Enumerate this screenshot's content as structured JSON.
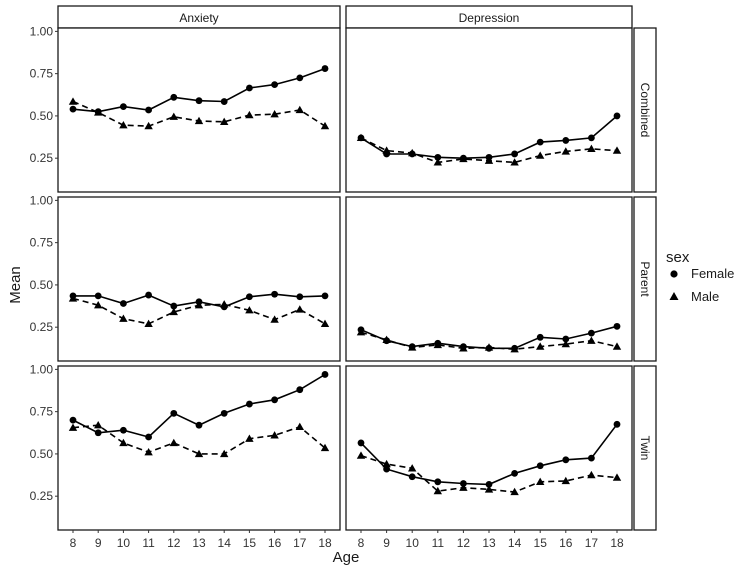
{
  "chart_data": {
    "type": "line",
    "xlabel": "Age",
    "ylabel": "Mean",
    "x": [
      8,
      9,
      10,
      11,
      12,
      13,
      14,
      15,
      16,
      17,
      18
    ],
    "ylim": [
      0.05,
      1.02
    ],
    "yticks": [
      "0.25",
      "0.50",
      "0.75",
      "1.00"
    ],
    "ytick_values": [
      0.25,
      0.5,
      0.75,
      1.0
    ],
    "columns": [
      "Anxiety",
      "Depression"
    ],
    "rows": [
      "Combined",
      "Parent",
      "Twin"
    ],
    "legend": {
      "title": "sex",
      "entries": [
        "Female",
        "Male"
      ],
      "position": "right"
    },
    "panels": [
      {
        "row": "Combined",
        "col": "Anxiety",
        "series": [
          {
            "name": "Female",
            "values": [
              0.54,
              0.525,
              0.555,
              0.535,
              0.61,
              0.59,
              0.585,
              0.665,
              0.685,
              0.725,
              0.78
            ]
          },
          {
            "name": "Male",
            "values": [
              0.585,
              0.52,
              0.445,
              0.44,
              0.495,
              0.47,
              0.465,
              0.505,
              0.51,
              0.535,
              0.44
            ]
          }
        ]
      },
      {
        "row": "Combined",
        "col": "Depression",
        "series": [
          {
            "name": "Female",
            "values": [
              0.37,
              0.275,
              0.275,
              0.255,
              0.25,
              0.255,
              0.275,
              0.345,
              0.355,
              0.37,
              0.5
            ]
          },
          {
            "name": "Male",
            "values": [
              0.37,
              0.295,
              0.28,
              0.225,
              0.245,
              0.235,
              0.225,
              0.265,
              0.29,
              0.305,
              0.295
            ]
          }
        ]
      },
      {
        "row": "Parent",
        "col": "Anxiety",
        "series": [
          {
            "name": "Female",
            "values": [
              0.435,
              0.435,
              0.39,
              0.44,
              0.375,
              0.4,
              0.37,
              0.43,
              0.445,
              0.43,
              0.435
            ]
          },
          {
            "name": "Male",
            "values": [
              0.42,
              0.38,
              0.3,
              0.27,
              0.34,
              0.38,
              0.385,
              0.35,
              0.295,
              0.355,
              0.27
            ]
          }
        ]
      },
      {
        "row": "Parent",
        "col": "Depression",
        "series": [
          {
            "name": "Female",
            "values": [
              0.235,
              0.17,
              0.135,
              0.155,
              0.135,
              0.125,
              0.125,
              0.19,
              0.18,
              0.215,
              0.255
            ]
          },
          {
            "name": "Male",
            "values": [
              0.22,
              0.175,
              0.13,
              0.145,
              0.125,
              0.13,
              0.12,
              0.135,
              0.15,
              0.17,
              0.135
            ]
          }
        ]
      },
      {
        "row": "Twin",
        "col": "Anxiety",
        "series": [
          {
            "name": "Female",
            "values": [
              0.7,
              0.625,
              0.64,
              0.6,
              0.74,
              0.67,
              0.74,
              0.795,
              0.82,
              0.88,
              0.97
            ]
          },
          {
            "name": "Male",
            "values": [
              0.655,
              0.67,
              0.565,
              0.51,
              0.565,
              0.5,
              0.5,
              0.59,
              0.61,
              0.66,
              0.535
            ]
          }
        ]
      },
      {
        "row": "Twin",
        "col": "Depression",
        "series": [
          {
            "name": "Female",
            "values": [
              0.565,
              0.41,
              0.365,
              0.335,
              0.325,
              0.32,
              0.385,
              0.43,
              0.465,
              0.475,
              0.675
            ]
          },
          {
            "name": "Male",
            "values": [
              0.49,
              0.44,
              0.415,
              0.28,
              0.3,
              0.29,
              0.275,
              0.335,
              0.34,
              0.375,
              0.36
            ]
          }
        ]
      }
    ]
  }
}
